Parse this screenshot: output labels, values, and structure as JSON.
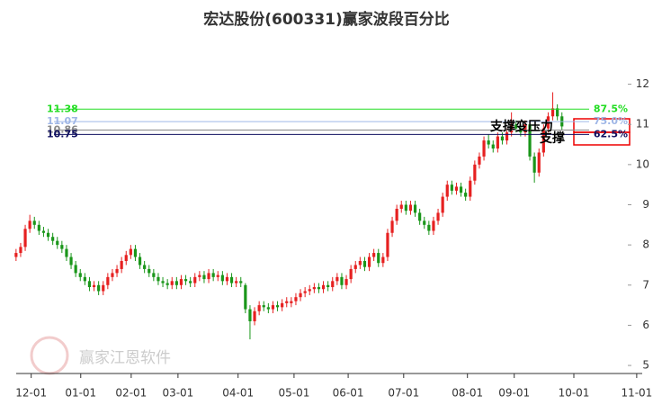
{
  "chart_data": {
    "type": "candlestick",
    "title": "宏达股份(600331)赢家波段百分比",
    "watermark": "赢家江恩软件",
    "up_color": "#e62020",
    "down_color": "#1a961a",
    "open": [
      7.7,
      7.8,
      7.95,
      8.4,
      8.6,
      8.5,
      8.35,
      8.3,
      8.2,
      8.1,
      8.0,
      7.9,
      7.7,
      7.5,
      7.3,
      7.2,
      7.1,
      6.95,
      7.0,
      6.85,
      7.0,
      7.2,
      7.3,
      7.4,
      7.6,
      7.75,
      7.9,
      7.7,
      7.5,
      7.4,
      7.3,
      7.2,
      7.1,
      7.05,
      7.0,
      7.1,
      7.0,
      7.15,
      7.1,
      7.05,
      7.2,
      7.25,
      7.15,
      7.3,
      7.2,
      7.25,
      7.1,
      7.2,
      7.05,
      7.1,
      7.0,
      6.4,
      6.1,
      6.35,
      6.5,
      6.45,
      6.4,
      6.5,
      6.45,
      6.55,
      6.55,
      6.6,
      6.7,
      6.8,
      6.85,
      6.9,
      6.95,
      6.9,
      7.0,
      6.95,
      7.1,
      7.2,
      7.0,
      7.15,
      7.4,
      7.5,
      7.6,
      7.45,
      7.7,
      7.8,
      7.55,
      7.7,
      8.3,
      8.6,
      8.9,
      9.0,
      8.85,
      9.0,
      8.8,
      8.6,
      8.5,
      8.35,
      8.6,
      8.8,
      9.2,
      9.5,
      9.35,
      9.45,
      9.3,
      9.2,
      9.6,
      10.0,
      10.2,
      10.6,
      10.5,
      10.4,
      10.7,
      10.6,
      10.8,
      11.0,
      10.9,
      10.8,
      11.0,
      10.2,
      9.8,
      10.3,
      10.9,
      11.2,
      11.4,
      11.2
    ],
    "high": [
      7.9,
      8.05,
      8.5,
      8.75,
      8.7,
      8.6,
      8.45,
      8.4,
      8.3,
      8.2,
      8.1,
      8.0,
      7.8,
      7.6,
      7.4,
      7.3,
      7.2,
      7.1,
      7.1,
      7.1,
      7.3,
      7.4,
      7.5,
      7.7,
      7.85,
      8.0,
      8.0,
      7.8,
      7.6,
      7.5,
      7.4,
      7.3,
      7.2,
      7.15,
      7.2,
      7.2,
      7.25,
      7.25,
      7.2,
      7.3,
      7.35,
      7.35,
      7.4,
      7.4,
      7.35,
      7.35,
      7.3,
      7.3,
      7.2,
      7.2,
      7.05,
      6.5,
      6.45,
      6.6,
      6.6,
      6.55,
      6.6,
      6.6,
      6.65,
      6.7,
      6.7,
      6.8,
      6.9,
      6.95,
      7.0,
      7.05,
      7.05,
      7.1,
      7.1,
      7.2,
      7.3,
      7.3,
      7.25,
      7.5,
      7.6,
      7.7,
      7.7,
      7.8,
      7.9,
      7.9,
      7.8,
      8.4,
      8.7,
      9.0,
      9.1,
      9.1,
      9.1,
      9.1,
      8.9,
      8.7,
      8.6,
      8.7,
      8.9,
      9.3,
      9.6,
      9.6,
      9.55,
      9.55,
      9.4,
      9.7,
      10.1,
      10.3,
      10.7,
      10.75,
      10.6,
      10.8,
      10.8,
      10.9,
      11.3,
      11.1,
      11.0,
      11.1,
      11.1,
      10.3,
      10.4,
      11.0,
      11.3,
      11.8,
      11.5,
      11.3
    ],
    "low": [
      7.6,
      7.7,
      7.85,
      8.3,
      8.4,
      8.25,
      8.2,
      8.1,
      8.0,
      7.9,
      7.8,
      7.6,
      7.4,
      7.2,
      7.1,
      7.0,
      6.85,
      6.85,
      6.75,
      6.75,
      6.9,
      7.1,
      7.2,
      7.3,
      7.5,
      7.65,
      7.6,
      7.4,
      7.3,
      7.2,
      7.1,
      7.0,
      6.95,
      6.9,
      6.9,
      6.9,
      6.9,
      7.0,
      6.95,
      6.95,
      7.1,
      7.05,
      7.05,
      7.1,
      7.1,
      7.0,
      7.0,
      6.95,
      6.95,
      6.95,
      6.3,
      5.65,
      6.0,
      6.25,
      6.35,
      6.3,
      6.3,
      6.35,
      6.35,
      6.45,
      6.45,
      6.5,
      6.6,
      6.7,
      6.75,
      6.8,
      6.8,
      6.8,
      6.85,
      6.85,
      7.0,
      6.9,
      6.9,
      7.05,
      7.3,
      7.4,
      7.35,
      7.35,
      7.6,
      7.45,
      7.45,
      7.6,
      8.2,
      8.5,
      8.8,
      8.75,
      8.75,
      8.7,
      8.5,
      8.4,
      8.25,
      8.25,
      8.5,
      8.7,
      9.1,
      9.25,
      9.25,
      9.2,
      9.1,
      9.1,
      9.5,
      9.9,
      10.1,
      10.4,
      10.3,
      10.3,
      10.5,
      10.5,
      10.7,
      10.8,
      10.7,
      10.7,
      10.1,
      9.55,
      9.7,
      10.2,
      10.8,
      11.1,
      11.1,
      10.85
    ],
    "close": [
      7.8,
      7.95,
      8.4,
      8.6,
      8.5,
      8.35,
      8.3,
      8.2,
      8.1,
      8.0,
      7.9,
      7.7,
      7.5,
      7.3,
      7.2,
      7.1,
      6.95,
      7.0,
      6.85,
      7.0,
      7.2,
      7.3,
      7.4,
      7.6,
      7.75,
      7.9,
      7.7,
      7.5,
      7.4,
      7.3,
      7.2,
      7.1,
      7.05,
      7.0,
      7.1,
      7.0,
      7.15,
      7.1,
      7.05,
      7.2,
      7.25,
      7.15,
      7.3,
      7.2,
      7.25,
      7.1,
      7.2,
      7.05,
      7.1,
      7.05,
      6.4,
      6.1,
      6.35,
      6.5,
      6.45,
      6.4,
      6.5,
      6.45,
      6.55,
      6.6,
      6.6,
      6.7,
      6.8,
      6.85,
      6.9,
      6.95,
      6.9,
      7.0,
      6.95,
      7.1,
      7.2,
      7.0,
      7.15,
      7.4,
      7.5,
      7.6,
      7.45,
      7.7,
      7.8,
      7.55,
      7.7,
      8.3,
      8.6,
      8.9,
      9.0,
      8.85,
      9.0,
      8.8,
      8.6,
      8.5,
      8.35,
      8.6,
      8.8,
      9.2,
      9.5,
      9.35,
      9.45,
      9.3,
      9.2,
      9.6,
      10.0,
      10.2,
      10.6,
      10.5,
      10.4,
      10.7,
      10.6,
      10.8,
      11.0,
      10.9,
      10.8,
      11.0,
      10.2,
      9.8,
      10.3,
      10.9,
      11.2,
      11.4,
      11.2,
      10.95
    ],
    "xlim": [
      -3.5,
      136.5
    ],
    "xticks": [
      {
        "value": 3.3,
        "label": "12-01"
      },
      {
        "value": 14.1,
        "label": "01-01"
      },
      {
        "value": 25.1,
        "label": "02-01"
      },
      {
        "value": 35.3,
        "label": "03-01"
      },
      {
        "value": 48.4,
        "label": "04-01"
      },
      {
        "value": 60.6,
        "label": "05-01"
      },
      {
        "value": 72.4,
        "label": "06-01"
      },
      {
        "value": 84.5,
        "label": "07-01"
      },
      {
        "value": 98.4,
        "label": "08-01"
      },
      {
        "value": 108.6,
        "label": "09-01"
      },
      {
        "value": 121.6,
        "label": "10-01"
      },
      {
        "value": 135.3,
        "label": "11-01"
      }
    ],
    "ylim": [
      4.8,
      13.2
    ],
    "yticks": [
      5,
      6,
      7,
      8,
      9,
      10,
      11,
      12
    ],
    "levels": [
      {
        "value": 11.38,
        "pct": "87.5%",
        "color": "#22dd22"
      },
      {
        "value": 11.07,
        "pct": "75.0%",
        "color": "#9fb6e6"
      },
      {
        "value": 10.86,
        "color": "#888888"
      },
      {
        "value": 10.75,
        "pct": "62.5%",
        "color": "#101060"
      }
    ],
    "annotations": [
      "支撑变压力",
      "支撑"
    ]
  }
}
